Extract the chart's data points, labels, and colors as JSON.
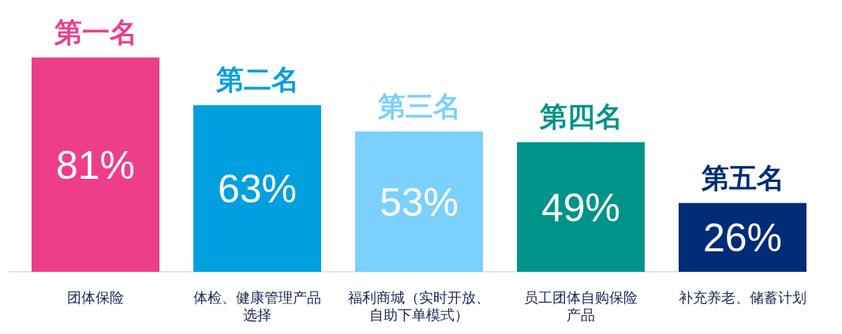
{
  "chart_data": {
    "type": "bar",
    "categories": [
      "团体保险",
      "体检、健康管理产品选择",
      "福利商城（实时开放、自助下单模式）",
      "员工团体自购保险产品",
      "补充养老、储蓄计划"
    ],
    "values": [
      81,
      63,
      53,
      49,
      26
    ],
    "colors": [
      "#ee3d8b",
      "#009fdf",
      "#7bd0fd",
      "#00938a",
      "#002b77"
    ],
    "value_labels": [
      "81%",
      "63%",
      "53%",
      "49%",
      "26%"
    ],
    "annotations": [
      {
        "text": "第一名",
        "x": "团体保险",
        "y": 81
      },
      {
        "text": "第二名",
        "x": "体检、健康管理产品选择",
        "y": 63
      },
      {
        "text": "第三名",
        "x": "福利商城（实时开放、自助下单模式）",
        "y": 53
      },
      {
        "text": "第四名",
        "x": "员工团体自购保险产品",
        "y": 49
      },
      {
        "text": "第五名",
        "x": "补充养老、储蓄计划",
        "y": 26
      }
    ]
  }
}
